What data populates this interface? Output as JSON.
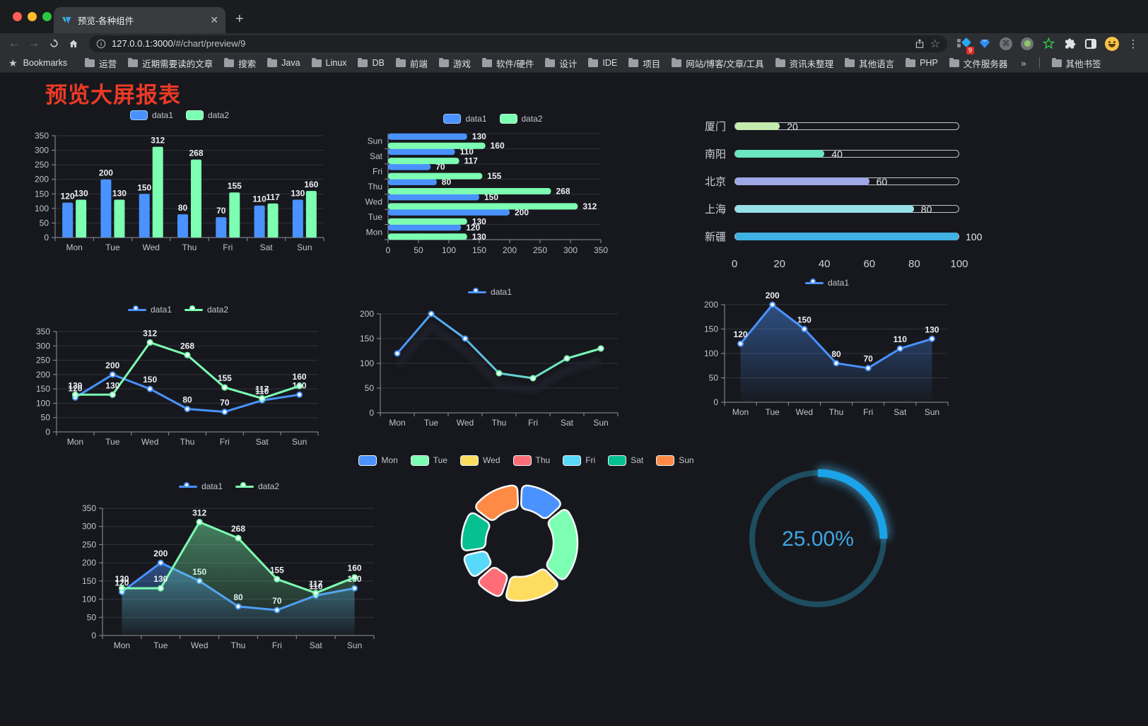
{
  "browser": {
    "tab_title": "预览-各种组件",
    "url_host": "127.0.0.1:3000",
    "url_path": "/#/chart/preview/9",
    "bookmarks_label": "Bookmarks",
    "bookmarks": [
      "运营",
      "近期需要读的文章",
      "搜索",
      "Java",
      "Linux",
      "DB",
      "前端",
      "游戏",
      "软件/硬件",
      "设计",
      "IDE",
      "项目",
      "网站/博客/文章/工具",
      "资讯未整理",
      "其他语言",
      "PHP",
      "文件服务器"
    ],
    "overflow_chevron": "»",
    "other_bookmarks": "其他书签",
    "extension_badge": "9"
  },
  "page": {
    "title": "预览大屏报表",
    "title_color": "#ed3a26"
  },
  "palette": {
    "data1_blue": "#4992ff",
    "data2_green": "#7cffb2",
    "axis_label": "#c2c4ce",
    "grid": "#31333c",
    "axis_line": "#8f93a0"
  },
  "chart_data": [
    {
      "id": "c1",
      "type": "bar",
      "legend_icon": "rect",
      "categories": [
        "Mon",
        "Tue",
        "Wed",
        "Thu",
        "Fri",
        "Sat",
        "Sun"
      ],
      "series": [
        {
          "name": "data1",
          "color": "#4992ff",
          "values": [
            120,
            200,
            150,
            80,
            70,
            110,
            130
          ]
        },
        {
          "name": "data2",
          "color": "#7cffb2",
          "values": [
            130,
            130,
            312,
            268,
            155,
            117,
            160
          ]
        }
      ],
      "ylim": [
        0,
        350
      ],
      "ystep": 50,
      "value_labels": true
    },
    {
      "id": "c2",
      "type": "bar-horizontal",
      "legend_icon": "rect",
      "categories": [
        "Mon",
        "Tue",
        "Wed",
        "Thu",
        "Fri",
        "Sat",
        "Sun"
      ],
      "series": [
        {
          "name": "data1",
          "color": "#4992ff",
          "values": [
            120,
            200,
            150,
            80,
            70,
            110,
            130
          ]
        },
        {
          "name": "data2",
          "color": "#7cffb2",
          "values": [
            130,
            130,
            312,
            268,
            155,
            117,
            160
          ]
        }
      ],
      "xlim": [
        0,
        350
      ],
      "xstep": 50,
      "value_labels": true
    },
    {
      "id": "c3",
      "type": "progress-bars",
      "max": 100,
      "items": [
        {
          "label": "厦门",
          "value": 20,
          "color": "#c4ebad"
        },
        {
          "label": "南阳",
          "value": 40,
          "color": "#6be6c1"
        },
        {
          "label": "北京",
          "value": 60,
          "color": "#a0a7e6"
        },
        {
          "label": "上海",
          "value": 80,
          "color": "#96dee8"
        },
        {
          "label": "新疆",
          "value": 100,
          "color": "#3fb1e3"
        }
      ],
      "axis_ticks": [
        0,
        20,
        40,
        60,
        80,
        100
      ]
    },
    {
      "id": "c4",
      "type": "line",
      "legend_icon": "line",
      "categories": [
        "Mon",
        "Tue",
        "Wed",
        "Thu",
        "Fri",
        "Sat",
        "Sun"
      ],
      "series": [
        {
          "name": "data1",
          "color": "#4992ff",
          "values": [
            120,
            200,
            150,
            80,
            70,
            110,
            130
          ],
          "markers": true,
          "labels": true
        },
        {
          "name": "data2",
          "color": "#7cffb2",
          "values": [
            130,
            130,
            312,
            268,
            155,
            117,
            160
          ],
          "markers": true,
          "labels": true
        }
      ],
      "ylim": [
        0,
        350
      ],
      "ystep": 50
    },
    {
      "id": "c5",
      "type": "line",
      "legend_icon": "line",
      "categories": [
        "Mon",
        "Tue",
        "Wed",
        "Thu",
        "Fri",
        "Sat",
        "Sun"
      ],
      "series": [
        {
          "name": "data1",
          "gradient": [
            "#4992ff",
            "#7cffb2"
          ],
          "values": [
            120,
            200,
            150,
            80,
            70,
            110,
            130
          ],
          "markers": true,
          "labels": false,
          "shadow": true
        }
      ],
      "ylim": [
        0,
        200
      ],
      "ystep": 50
    },
    {
      "id": "c6",
      "type": "line",
      "legend_icon": "line",
      "categories": [
        "Mon",
        "Tue",
        "Wed",
        "Thu",
        "Fri",
        "Sat",
        "Sun"
      ],
      "series": [
        {
          "name": "data1",
          "color": "#4992ff",
          "values": [
            120,
            200,
            150,
            80,
            70,
            110,
            130
          ],
          "markers": true,
          "labels": true,
          "area": true
        }
      ],
      "ylim": [
        0,
        200
      ],
      "ystep": 50
    },
    {
      "id": "c7",
      "type": "line",
      "legend_icon": "line",
      "categories": [
        "Mon",
        "Tue",
        "Wed",
        "Thu",
        "Fri",
        "Sat",
        "Sun"
      ],
      "series": [
        {
          "name": "data1",
          "color": "#4992ff",
          "values": [
            120,
            200,
            150,
            80,
            70,
            110,
            130
          ],
          "markers": true,
          "labels": true,
          "area": true
        },
        {
          "name": "data2",
          "color": "#7cffb2",
          "values": [
            130,
            130,
            312,
            268,
            155,
            117,
            160
          ],
          "markers": true,
          "labels": true,
          "area": true
        }
      ],
      "ylim": [
        0,
        350
      ],
      "ystep": 50
    },
    {
      "id": "c8",
      "type": "pie",
      "legend_items": [
        {
          "label": "Mon",
          "color": "#4992ff"
        },
        {
          "label": "Tue",
          "color": "#7cffb2"
        },
        {
          "label": "Wed",
          "color": "#fddd60"
        },
        {
          "label": "Thu",
          "color": "#ff6e76"
        },
        {
          "label": "Fri",
          "color": "#58d9f9"
        },
        {
          "label": "Sat",
          "color": "#05c091"
        },
        {
          "label": "Sun",
          "color": "#ff8a45"
        }
      ],
      "values": [
        120,
        200,
        150,
        80,
        70,
        110,
        130
      ]
    },
    {
      "id": "c9",
      "type": "gauge",
      "value": 25,
      "display": "25.00%",
      "color": "#1aa3e8",
      "track_color": "#1d4d5f",
      "text_color": "#3fa5e2"
    }
  ]
}
